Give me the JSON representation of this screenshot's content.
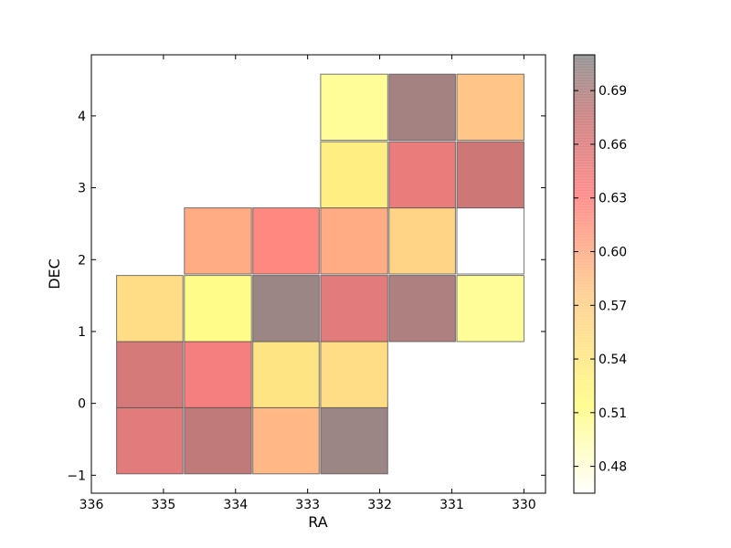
{
  "chart_data": {
    "type": "heatmap",
    "title": "",
    "xlabel": "RA",
    "ylabel": "DEC",
    "xlim": [
      336,
      329.7
    ],
    "ylim": [
      -1.25,
      4.85
    ],
    "x_inverted": true,
    "xticks": [
      336,
      335,
      334,
      333,
      332,
      331,
      330
    ],
    "yticks": [
      -1,
      0,
      1,
      2,
      3,
      4
    ],
    "grid": false,
    "colorbar": {
      "range": [
        0.465,
        0.71
      ],
      "colormap": "hot_r (alpha 0.4)",
      "ticks": [
        0.48,
        0.51,
        0.54,
        0.57,
        0.6,
        0.63,
        0.66,
        0.69
      ],
      "tick_labels": [
        "0.48",
        "0.51",
        "0.54",
        "0.57",
        "0.60",
        "0.63",
        "0.66",
        "0.69"
      ]
    },
    "cells": [
      {
        "ra": [
          335.65,
          334.73
        ],
        "dec": [
          -0.98,
          -0.06
        ],
        "value": 0.655
      },
      {
        "ra": [
          334.71,
          333.78
        ],
        "dec": [
          -0.98,
          -0.06
        ],
        "value": 0.68
      },
      {
        "ra": [
          333.76,
          332.84
        ],
        "dec": [
          -0.98,
          -0.06
        ],
        "value": 0.59
      },
      {
        "ra": [
          332.82,
          331.89
        ],
        "dec": [
          -0.98,
          -0.06
        ],
        "value": 0.7
      },
      {
        "ra": [
          335.65,
          334.73
        ],
        "dec": [
          -0.06,
          0.86
        ],
        "value": 0.665
      },
      {
        "ra": [
          334.71,
          333.78
        ],
        "dec": [
          -0.06,
          0.86
        ],
        "value": 0.64
      },
      {
        "ra": [
          333.76,
          332.84
        ],
        "dec": [
          -0.06,
          0.86
        ],
        "value": 0.545
      },
      {
        "ra": [
          332.82,
          331.89
        ],
        "dec": [
          -0.06,
          0.86
        ],
        "value": 0.555
      },
      {
        "ra": [
          335.65,
          334.73
        ],
        "dec": [
          0.86,
          1.78
        ],
        "value": 0.555
      },
      {
        "ra": [
          334.71,
          333.78
        ],
        "dec": [
          0.86,
          1.78
        ],
        "value": 0.51
      },
      {
        "ra": [
          333.76,
          332.84
        ],
        "dec": [
          0.86,
          1.78
        ],
        "value": 0.7
      },
      {
        "ra": [
          332.82,
          331.89
        ],
        "dec": [
          0.86,
          1.78
        ],
        "value": 0.655
      },
      {
        "ra": [
          331.87,
          330.95
        ],
        "dec": [
          0.86,
          1.78
        ],
        "value": 0.69
      },
      {
        "ra": [
          330.93,
          330.0
        ],
        "dec": [
          0.86,
          1.78
        ],
        "value": 0.505
      },
      {
        "ra": [
          334.71,
          333.78
        ],
        "dec": [
          1.8,
          2.72
        ],
        "value": 0.6
      },
      {
        "ra": [
          333.76,
          332.84
        ],
        "dec": [
          1.8,
          2.72
        ],
        "value": 0.625
      },
      {
        "ra": [
          332.82,
          331.89
        ],
        "dec": [
          1.8,
          2.72
        ],
        "value": 0.6
      },
      {
        "ra": [
          331.87,
          330.95
        ],
        "dec": [
          1.8,
          2.72
        ],
        "value": 0.565
      },
      {
        "ra": [
          330.93,
          330.0
        ],
        "dec": [
          1.8,
          2.72
        ],
        "value": 0.465
      },
      {
        "ra": [
          332.82,
          331.89
        ],
        "dec": [
          2.72,
          3.64
        ],
        "value": 0.53
      },
      {
        "ra": [
          331.87,
          330.95
        ],
        "dec": [
          2.72,
          3.64
        ],
        "value": 0.648
      },
      {
        "ra": [
          330.93,
          330.0
        ],
        "dec": [
          2.72,
          3.64
        ],
        "value": 0.672
      },
      {
        "ra": [
          332.82,
          331.89
        ],
        "dec": [
          3.66,
          4.58
        ],
        "value": 0.505
      },
      {
        "ra": [
          331.87,
          330.95
        ],
        "dec": [
          3.66,
          4.58
        ],
        "value": 0.695
      },
      {
        "ra": [
          330.93,
          330.0
        ],
        "dec": [
          3.66,
          4.58
        ],
        "value": 0.58
      }
    ]
  }
}
